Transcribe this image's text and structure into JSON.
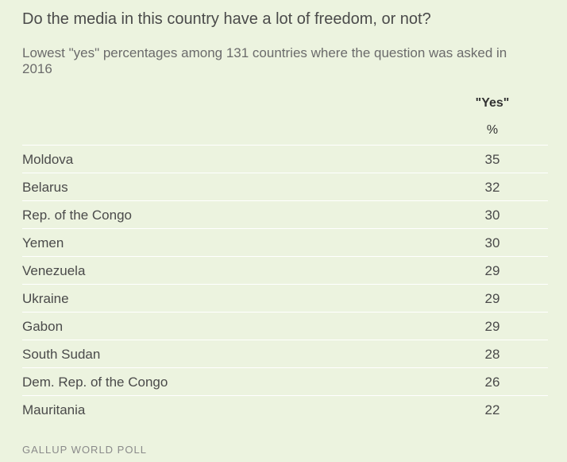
{
  "chart_data": {
    "type": "table",
    "title": "Do the media in this country have a lot of freedom, or not?",
    "subtitle": "Lowest \"yes\" percentages among 131 countries where the question was asked in 2016",
    "columns": [
      "\"Yes\""
    ],
    "unit": "%",
    "categories": [
      "Moldova",
      "Belarus",
      "Rep. of the Congo",
      "Yemen",
      "Venezuela",
      "Ukraine",
      "Gabon",
      "South Sudan",
      "Dem. Rep. of the Congo",
      "Mauritania"
    ],
    "series": [
      {
        "name": "\"Yes\"",
        "values": [
          35,
          32,
          30,
          30,
          29,
          29,
          29,
          28,
          26,
          22
        ]
      }
    ],
    "source": "GALLUP WORLD POLL"
  }
}
